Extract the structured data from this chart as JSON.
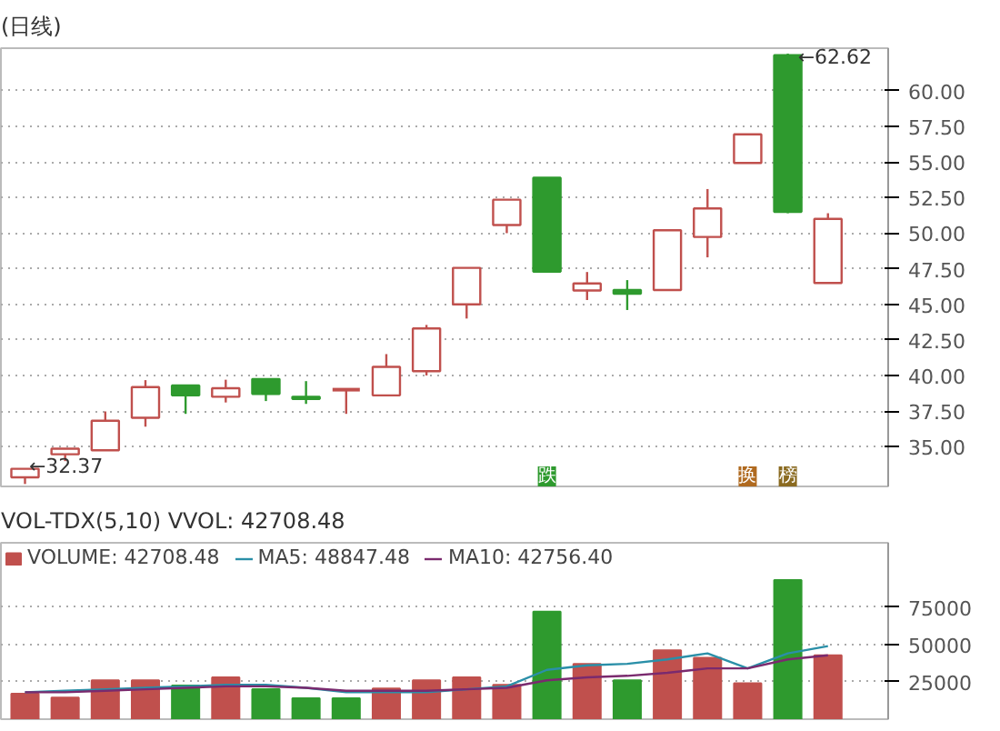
{
  "chart_data": [
    {
      "type": "candlestick",
      "title": "(日线)",
      "categories": [
        null,
        null,
        null,
        null,
        null,
        null,
        null,
        null,
        null,
        null,
        null,
        null,
        null,
        null,
        null,
        null,
        null,
        null,
        null,
        null,
        null
      ],
      "ohlc": [
        [
          32.84,
          33.44,
          32.37,
          33.44
        ],
        [
          34.46,
          34.85,
          33.98,
          34.85
        ],
        [
          34.74,
          37.47,
          34.7,
          36.82
        ],
        [
          37.02,
          39.67,
          36.4,
          39.18
        ],
        [
          39.3,
          39.3,
          37.3,
          38.6
        ],
        [
          38.5,
          39.7,
          38.1,
          39.1
        ],
        [
          39.75,
          39.75,
          38.2,
          38.7
        ],
        [
          38.5,
          39.6,
          38.0,
          38.35
        ],
        [
          39.0,
          39.0,
          37.3,
          39.0
        ],
        [
          38.6,
          41.5,
          38.6,
          40.6
        ],
        [
          40.3,
          43.55,
          40.0,
          43.3
        ],
        [
          45.0,
          47.6,
          44.0,
          47.56
        ],
        [
          50.57,
          52.35,
          50.0,
          52.35
        ],
        [
          53.9,
          53.9,
          47.3,
          47.3
        ],
        [
          45.97,
          47.27,
          45.3,
          46.47
        ],
        [
          46.0,
          46.7,
          44.6,
          45.75
        ],
        [
          46.0,
          50.2,
          46.0,
          50.2
        ],
        [
          49.73,
          53.1,
          48.3,
          51.74
        ],
        [
          54.93,
          56.95,
          54.93,
          56.95
        ],
        [
          62.5,
          62.62,
          51.4,
          51.5
        ],
        [
          46.5,
          51.4,
          46.5,
          51.0
        ]
      ],
      "colors": [
        "#c0504d",
        "#c0504d",
        "#c0504d",
        "#c0504d",
        "#2e9a2e",
        "#c0504d",
        "#2e9a2e",
        "#2e9a2e",
        "#c0504d",
        "#c0504d",
        "#c0504d",
        "#c0504d",
        "#c0504d",
        "#2e9a2e",
        "#c0504d",
        "#2e9a2e",
        "#c0504d",
        "#c0504d",
        "#c0504d",
        "#2e9a2e",
        "#c0504d"
      ],
      "ylim": [
        32.2,
        63.0
      ],
      "yticks": [
        {
          "value": 35,
          "label": "35.00"
        },
        {
          "value": 37.5,
          "label": "37.50"
        },
        {
          "value": 40,
          "label": "40.00"
        },
        {
          "value": 42.5,
          "label": "42.50"
        },
        {
          "value": 45,
          "label": "45.00"
        },
        {
          "value": 47.5,
          "label": "47.50"
        },
        {
          "value": 50,
          "label": "50.00"
        },
        {
          "value": 52.5,
          "label": "52.50"
        },
        {
          "value": 55,
          "label": "55.00"
        },
        {
          "value": 57.5,
          "label": "57.50"
        },
        {
          "value": 60,
          "label": "60.00"
        }
      ],
      "tick_labels": "y",
      "grid": "y",
      "annotations": [
        "←62.62",
        "←32.37",
        "跌",
        "换",
        "榜"
      ]
    },
    {
      "type": "bar",
      "title": "VOL-TDX(5,10)  VVOL: 42708.48",
      "categories": [
        null,
        null,
        null,
        null,
        null,
        null,
        null,
        null,
        null,
        null,
        null,
        null,
        null,
        null,
        null,
        null,
        null,
        null,
        null,
        null,
        null
      ],
      "series": [
        {
          "name": "VOLUME: 42708.48",
          "type": "bar",
          "color": "#c0504d",
          "colors": [
            "#c0504d",
            "#c0504d",
            "#c0504d",
            "#c0504d",
            "#2e9a2e",
            "#c0504d",
            "#2e9a2e",
            "#2e9a2e",
            "#2e9a2e",
            "#c0504d",
            "#c0504d",
            "#c0504d",
            "#c0504d",
            "#2e9a2e",
            "#c0504d",
            "#2e9a2e",
            "#c0504d",
            "#c0504d",
            "#c0504d",
            "#2e9a2e",
            "#c0504d"
          ],
          "values": [
            17000,
            14500,
            26000,
            26000,
            22500,
            28000,
            20000,
            14000,
            14000,
            20500,
            26000,
            28000,
            23000,
            72000,
            37000,
            26000,
            46000,
            41000,
            24000,
            93000,
            42708.48
          ]
        },
        {
          "name": "MA5: 48847.48",
          "type": "line",
          "color": "#2a8fa8",
          "values": [
            18000,
            19000,
            20000,
            21000,
            22000,
            23000,
            23000,
            21000,
            18000,
            18000,
            18000,
            20000,
            22000,
            33000,
            36000,
            37000,
            40000,
            44000,
            34000,
            44000,
            48847.48
          ]
        },
        {
          "name": "MA10: 42756.40",
          "type": "line",
          "color": "#7a2a6e",
          "values": [
            18000,
            18000,
            19000,
            20000,
            21000,
            22000,
            22000,
            21000,
            19000,
            19000,
            19000,
            20000,
            21000,
            26000,
            28000,
            29000,
            31000,
            34000,
            34000,
            40000,
            42756.4
          ]
        }
      ],
      "ylim": [
        0,
        118000
      ],
      "yticks": [
        25000,
        50000,
        75000
      ],
      "tick_labels": "y",
      "grid": "y",
      "legend": "top left"
    }
  ]
}
